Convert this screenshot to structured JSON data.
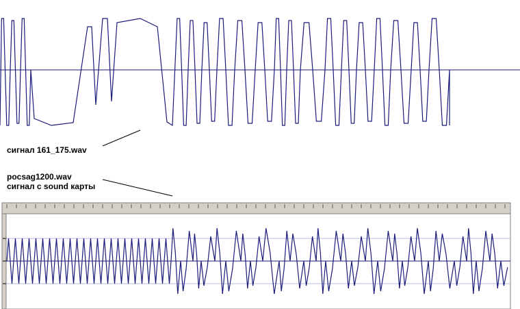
{
  "labels": {
    "signal_file": "сигнал 161_175.wav",
    "pocsag_file": "pocsag1200.wav",
    "soundcard_caption": "сигнал с sound карты"
  },
  "colors": {
    "waveform": "#1a1a7a",
    "baseline": "#1a1a7a",
    "gridline": "#b8b8e6",
    "panel_border": "#808080",
    "ruler_bg": "#d4d0c8"
  },
  "chart_data": [
    {
      "type": "line",
      "title": "сигнал 161_175.wav",
      "description_units": "relative amplitude",
      "ylim": [
        -1,
        1
      ],
      "segments": [
        {
          "kind": "osc",
          "cycles": 3,
          "amp": 0.95
        },
        {
          "kind": "low",
          "length": 1.2,
          "level": -0.95
        },
        {
          "kind": "osc",
          "cycles": 1,
          "amp": 0.95
        },
        {
          "kind": "high",
          "length": 2.0,
          "level": 0.95
        },
        {
          "kind": "osc",
          "cycles": 4,
          "amp": 0.9
        },
        {
          "kind": "osc",
          "cycles": 10,
          "amp": 0.9
        }
      ]
    },
    {
      "type": "line",
      "title": "pocsag1200.wav / сигнал с sound карты",
      "description_units": "relative amplitude",
      "ylim": [
        -1,
        1
      ],
      "segments": [
        {
          "kind": "osc",
          "cycles": 24,
          "amp": 0.55
        },
        {
          "kind": "burst",
          "cycles": 30,
          "amp": 0.95
        }
      ]
    }
  ]
}
